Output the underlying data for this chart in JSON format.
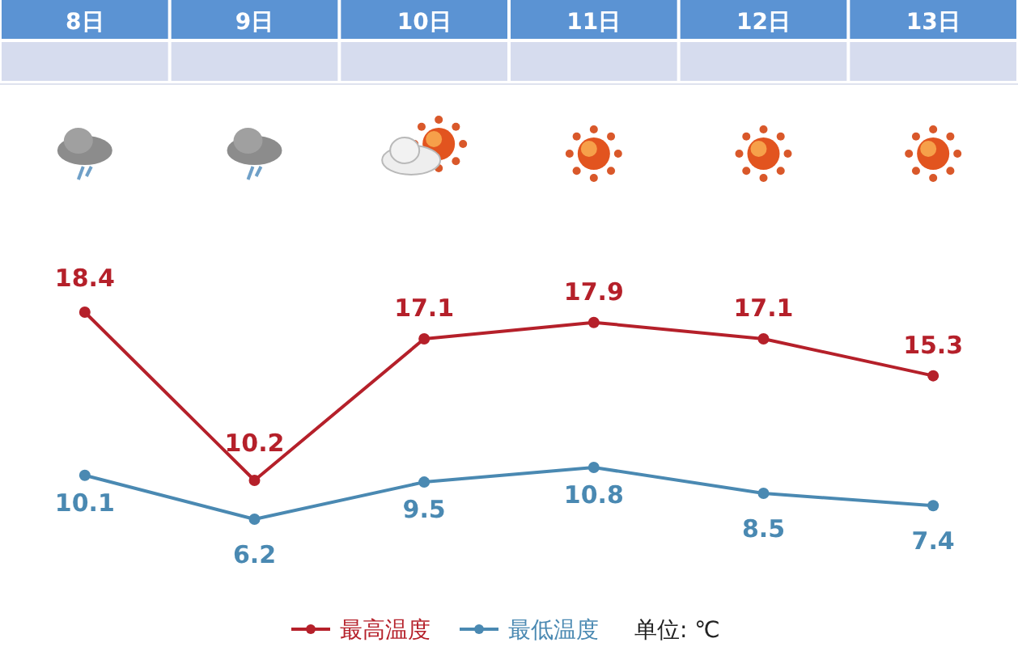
{
  "chart_data": {
    "type": "line",
    "categories": [
      "8日",
      "9日",
      "10日",
      "11日",
      "12日",
      "13日"
    ],
    "series": [
      {
        "name": "最高温度",
        "color": "#b5202a",
        "values": [
          18.4,
          10.2,
          17.1,
          17.9,
          17.1,
          15.3
        ]
      },
      {
        "name": "最低温度",
        "color": "#4a89b2",
        "axis": "y2",
        "values": [
          10.1,
          6.2,
          9.5,
          10.8,
          8.5,
          7.4
        ]
      }
    ],
    "data_labels": true,
    "marker": "circle",
    "line_style": "solid",
    "legend": "bottom",
    "annotations": [
      "单位: ℃"
    ]
  }
}
